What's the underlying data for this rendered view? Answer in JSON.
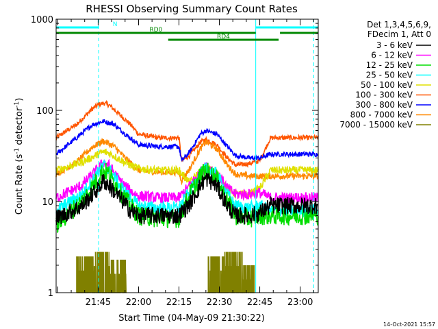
{
  "chart_data": {
    "type": "line",
    "title": "RHESSI Observing Summary Count Rates",
    "xlabel": "Start Time (04-May-09 21:30:22)",
    "ylabel_main": "Count Rate (s",
    "ylabel_sup1": "-1",
    "ylabel_mid": " detector",
    "ylabel_sup2": "-1",
    "ylabel_end": ")",
    "y_scale": "log",
    "ylim": [
      1,
      1000
    ],
    "xlim_min": [
      -15.6,
      81.7
    ],
    "y_ticks": [
      {
        "v": 1,
        "label": "1"
      },
      {
        "v": 10,
        "label": "10"
      },
      {
        "v": 100,
        "label": "100"
      },
      {
        "v": 1000,
        "label": "1000"
      }
    ],
    "x_ticks": [
      {
        "v": 0,
        "label": "21:45"
      },
      {
        "v": 15,
        "label": "22:00"
      },
      {
        "v": 30,
        "label": "22:15"
      },
      {
        "v": 45,
        "label": "22:30"
      },
      {
        "v": 60,
        "label": "22:45"
      },
      {
        "v": 75,
        "label": "23:00"
      }
    ],
    "legend_header": [
      "Det 1,3,4,5,6,9,",
      "FDecim 1, Att 0"
    ],
    "legend_position": "right",
    "series": [
      {
        "name": "3 - 6 keV",
        "color": "#000000"
      },
      {
        "name": "6 - 12 keV",
        "color": "#ff00ff"
      },
      {
        "name": "12 - 25 keV",
        "color": "#00dd00"
      },
      {
        "name": "25 - 50 keV",
        "color": "#00ffff"
      },
      {
        "name": "50 - 100 keV",
        "color": "#e0e000"
      },
      {
        "name": "100 - 300 keV",
        "color": "#ff5500"
      },
      {
        "name": "300 - 800 keV",
        "color": "#0000ff"
      },
      {
        "name": "800 - 7000 keV",
        "color": "#ff8800"
      },
      {
        "name": "7000 - 15000 keV",
        "color": "#808000"
      }
    ],
    "series_profiles": [
      {
        "name": "3 - 6 keV",
        "points": [
          [
            -15.6,
            6.5
          ],
          [
            -6,
            9
          ],
          [
            0,
            14
          ],
          [
            2,
            17
          ],
          [
            4,
            15
          ],
          [
            8,
            11
          ],
          [
            12,
            8
          ],
          [
            15,
            7
          ],
          [
            22,
            7
          ],
          [
            30,
            7
          ],
          [
            34,
            9.5
          ],
          [
            38,
            15
          ],
          [
            40,
            18
          ],
          [
            44,
            15
          ],
          [
            48,
            9
          ],
          [
            51,
            7
          ],
          [
            56,
            7
          ],
          [
            60,
            7.5
          ],
          [
            64,
            9
          ],
          [
            81.7,
            9
          ]
        ]
      },
      {
        "name": "6 - 12 keV",
        "points": [
          [
            -15.6,
            11
          ],
          [
            -6,
            15
          ],
          [
            0,
            23
          ],
          [
            2,
            27
          ],
          [
            4,
            25
          ],
          [
            8,
            17
          ],
          [
            12,
            13
          ],
          [
            15,
            11.5
          ],
          [
            22,
            11
          ],
          [
            30,
            11
          ],
          [
            34,
            15
          ],
          [
            38,
            21
          ],
          [
            40,
            24
          ],
          [
            44,
            21
          ],
          [
            48,
            14
          ],
          [
            51,
            12
          ],
          [
            56,
            12
          ],
          [
            60,
            12.5
          ],
          [
            64,
            11
          ],
          [
            81.7,
            11
          ]
        ]
      },
      {
        "name": "12 - 25 keV",
        "points": [
          [
            -15.6,
            5.5
          ],
          [
            -6,
            10
          ],
          [
            0,
            18
          ],
          [
            2,
            22
          ],
          [
            4,
            20
          ],
          [
            8,
            13
          ],
          [
            12,
            9
          ],
          [
            15,
            7
          ],
          [
            22,
            6.5
          ],
          [
            30,
            6.5
          ],
          [
            34,
            12
          ],
          [
            38,
            19
          ],
          [
            40,
            22
          ],
          [
            44,
            18
          ],
          [
            48,
            10
          ],
          [
            51,
            7
          ],
          [
            56,
            6.5
          ],
          [
            60,
            7
          ],
          [
            64,
            7
          ],
          [
            81.7,
            7
          ]
        ]
      },
      {
        "name": "25 - 50 keV",
        "points": [
          [
            -15.6,
            8
          ],
          [
            -6,
            12
          ],
          [
            0,
            21
          ],
          [
            2,
            25
          ],
          [
            4,
            23
          ],
          [
            8,
            15
          ],
          [
            12,
            11
          ],
          [
            15,
            9
          ],
          [
            22,
            8.5
          ],
          [
            30,
            8.5
          ],
          [
            34,
            13
          ],
          [
            38,
            20
          ],
          [
            40,
            23
          ],
          [
            44,
            20
          ],
          [
            48,
            12
          ],
          [
            51,
            9
          ],
          [
            56,
            8.5
          ],
          [
            60,
            9
          ],
          [
            64,
            8
          ],
          [
            81.7,
            8
          ]
        ]
      },
      {
        "name": "50 - 100 keV",
        "points": [
          [
            -15.6,
            22
          ],
          [
            -6,
            27
          ],
          [
            0,
            33
          ],
          [
            2,
            35
          ],
          [
            4,
            34
          ],
          [
            8,
            29
          ],
          [
            12,
            25
          ],
          [
            15,
            23
          ],
          [
            22,
            22
          ],
          [
            30,
            22
          ],
          [
            34,
            16
          ],
          [
            38,
            22
          ],
          [
            40,
            24
          ],
          [
            44,
            21
          ],
          [
            48,
            14
          ],
          [
            51,
            12
          ],
          [
            56,
            12
          ],
          [
            60,
            14
          ],
          [
            64,
            22
          ],
          [
            81.7,
            22
          ]
        ]
      },
      {
        "name": "100 - 300 keV",
        "points": [
          [
            -15.6,
            50
          ],
          [
            -8,
            70
          ],
          [
            -2,
            105
          ],
          [
            0,
            115
          ],
          [
            2,
            120
          ],
          [
            4,
            115
          ],
          [
            8,
            90
          ],
          [
            12,
            70
          ],
          [
            15,
            55
          ],
          [
            22,
            50
          ],
          [
            30,
            50
          ],
          [
            31,
            28
          ],
          [
            34,
            32
          ],
          [
            38,
            45
          ],
          [
            40,
            48
          ],
          [
            44,
            42
          ],
          [
            48,
            30
          ],
          [
            51,
            25
          ],
          [
            56,
            26
          ],
          [
            60,
            28
          ],
          [
            64,
            50
          ],
          [
            81.7,
            50
          ]
        ]
      },
      {
        "name": "300 - 800 keV",
        "points": [
          [
            -15.6,
            33
          ],
          [
            -8,
            50
          ],
          [
            -2,
            70
          ],
          [
            2,
            76
          ],
          [
            6,
            70
          ],
          [
            10,
            55
          ],
          [
            15,
            42
          ],
          [
            22,
            40
          ],
          [
            30,
            40
          ],
          [
            31,
            28
          ],
          [
            34,
            35
          ],
          [
            38,
            55
          ],
          [
            40,
            60
          ],
          [
            44,
            55
          ],
          [
            48,
            40
          ],
          [
            51,
            32
          ],
          [
            56,
            30
          ],
          [
            60,
            30
          ],
          [
            64,
            33
          ],
          [
            81.7,
            33
          ]
        ]
      },
      {
        "name": "800 - 7000 keV",
        "points": [
          [
            -15.6,
            20
          ],
          [
            -8,
            27
          ],
          [
            -2,
            40
          ],
          [
            2,
            46
          ],
          [
            6,
            40
          ],
          [
            10,
            30
          ],
          [
            15,
            22
          ],
          [
            22,
            21
          ],
          [
            30,
            21
          ],
          [
            31,
            17
          ],
          [
            34,
            23
          ],
          [
            38,
            38
          ],
          [
            40,
            45
          ],
          [
            44,
            38
          ],
          [
            48,
            25
          ],
          [
            51,
            20
          ],
          [
            56,
            19
          ],
          [
            60,
            19
          ],
          [
            64,
            19
          ],
          [
            81.7,
            19
          ]
        ]
      }
    ],
    "saa_bursts": [
      {
        "x0": -8.0,
        "x1": -1.5,
        "peak": 2.5
      },
      {
        "x0": -1.5,
        "x1": 4.5,
        "peak": 2.8
      },
      {
        "x0": 4.5,
        "x1": 10.5,
        "peak": 2.3
      },
      {
        "x0": 40.5,
        "x1": 47.0,
        "peak": 2.5
      },
      {
        "x0": 47.0,
        "x1": 53.5,
        "peak": 2.8
      },
      {
        "x0": 53.5,
        "x1": 58.0,
        "peak": 2.0
      }
    ],
    "night_markers": [
      {
        "label": "N",
        "x0": -15.6,
        "x1": 0.2,
        "y": 40,
        "color": "#00ffff"
      },
      {
        "label": "",
        "x0": 58.5,
        "x1": 81.7,
        "y": 40,
        "color": "#00ffff"
      }
    ],
    "decim_markers": [
      {
        "label": "RD0",
        "x0": -15.6,
        "x1": 58.5,
        "y": 48,
        "color": "#008800"
      },
      {
        "label": "RD4",
        "x0": 26.0,
        "x1": 67.0,
        "y": 58,
        "color": "#008800"
      },
      {
        "label": "",
        "x0": 67.5,
        "x1": 81.7,
        "y": 48,
        "color": "#008800"
      }
    ],
    "vertical_lines": [
      {
        "x": -15.6,
        "style": "solid",
        "color": "#00ffff"
      },
      {
        "x": 0.2,
        "style": "dashed",
        "color": "#00ffff"
      },
      {
        "x": 58.5,
        "style": "solid",
        "color": "#00ffff"
      },
      {
        "x": 80.0,
        "style": "dashed",
        "color": "#00ffff"
      }
    ]
  },
  "footer_date": "14-Oct-2021 15:57"
}
